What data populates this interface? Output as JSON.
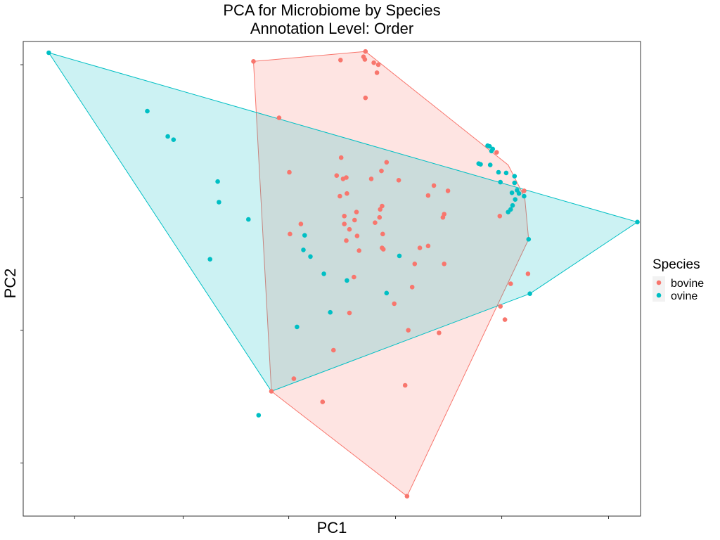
{
  "chart_data": {
    "type": "scatter",
    "title": "PCA for Microbiome by Species",
    "subtitle": "Annotation Level: Order",
    "xlabel": "PC1",
    "ylabel": "PC2",
    "tick_labels_visible": false,
    "grid": false,
    "xlim": [
      -1.1,
      8.55
    ],
    "ylim": [
      -0.3,
      6.85
    ],
    "x_ticks": [
      -0.3,
      1.4,
      3.05,
      4.72,
      6.38,
      8.05
    ],
    "y_ticks": [
      0.5,
      2.5,
      4.5,
      6.5
    ],
    "legend": {
      "title": "Species",
      "position": "right"
    },
    "hull_fill_opacity": 0.2,
    "series": [
      {
        "name": "bovine",
        "color": "#F8766D",
        "hull": [
          [
            2.5,
            6.55
          ],
          [
            4.25,
            6.7
          ],
          [
            6.48,
            4.99
          ],
          [
            6.74,
            4.5
          ],
          [
            6.8,
            3.87
          ],
          [
            4.9,
            0.0
          ],
          [
            2.78,
            1.58
          ]
        ],
        "points": [
          [
            2.5,
            6.55
          ],
          [
            3.86,
            6.57
          ],
          [
            4.25,
            6.7
          ],
          [
            4.22,
            6.62
          ],
          [
            4.24,
            6.58
          ],
          [
            4.38,
            6.53
          ],
          [
            4.45,
            6.5
          ],
          [
            4.43,
            6.38
          ],
          [
            4.25,
            6.0
          ],
          [
            2.9,
            5.7
          ],
          [
            6.3,
            5.18
          ],
          [
            3.87,
            5.1
          ],
          [
            3.06,
            4.88
          ],
          [
            3.8,
            4.83
          ],
          [
            3.9,
            4.78
          ],
          [
            4.34,
            4.78
          ],
          [
            3.95,
            4.8
          ],
          [
            4.77,
            4.76
          ],
          [
            5.32,
            4.68
          ],
          [
            5.54,
            4.6
          ],
          [
            6.73,
            4.6
          ],
          [
            3.96,
            4.56
          ],
          [
            3.85,
            4.52
          ],
          [
            5.23,
            4.53
          ],
          [
            4.5,
            4.9
          ],
          [
            4.58,
            5.03
          ],
          [
            4.11,
            4.28
          ],
          [
            4.48,
            4.32
          ],
          [
            4.51,
            4.37
          ],
          [
            3.92,
            4.22
          ],
          [
            4.08,
            4.16
          ],
          [
            3.24,
            4.1
          ],
          [
            3.92,
            4.1
          ],
          [
            4.0,
            4.02
          ],
          [
            4.4,
            4.12
          ],
          [
            4.47,
            4.2
          ],
          [
            5.46,
            4.2
          ],
          [
            5.48,
            4.25
          ],
          [
            6.35,
            4.22
          ],
          [
            3.07,
            3.95
          ],
          [
            4.12,
            3.92
          ],
          [
            4.52,
            3.95
          ],
          [
            3.95,
            3.85
          ],
          [
            4.15,
            3.7
          ],
          [
            4.51,
            3.74
          ],
          [
            5.23,
            3.77
          ],
          [
            5.1,
            3.74
          ],
          [
            4.98,
            3.15
          ],
          [
            4.53,
            3.72
          ],
          [
            6.52,
            3.2
          ],
          [
            5.02,
            3.5
          ],
          [
            5.48,
            3.5
          ],
          [
            4.07,
            3.3
          ],
          [
            4.0,
            2.76
          ],
          [
            6.79,
            3.35
          ],
          [
            4.7,
            2.9
          ],
          [
            6.36,
            2.86
          ],
          [
            6.43,
            2.66
          ],
          [
            5.4,
            2.46
          ],
          [
            4.92,
            2.5
          ],
          [
            3.75,
            2.2
          ],
          [
            3.13,
            1.77
          ],
          [
            3.58,
            1.42
          ],
          [
            4.87,
            1.67
          ],
          [
            2.78,
            1.58
          ],
          [
            4.9,
            0.0
          ]
        ]
      },
      {
        "name": "ovine",
        "color": "#00BFC4",
        "hull": [
          [
            -0.7,
            6.68
          ],
          [
            8.5,
            4.13
          ],
          [
            6.82,
            3.05
          ],
          [
            2.78,
            1.58
          ]
        ],
        "points": [
          [
            -0.7,
            6.68
          ],
          [
            0.84,
            5.8
          ],
          [
            1.16,
            5.42
          ],
          [
            1.25,
            5.37
          ],
          [
            1.94,
            4.74
          ],
          [
            1.96,
            4.43
          ],
          [
            2.42,
            4.17
          ],
          [
            1.82,
            3.57
          ],
          [
            2.58,
            1.22
          ],
          [
            3.3,
            3.93
          ],
          [
            3.28,
            3.71
          ],
          [
            3.39,
            3.61
          ],
          [
            3.6,
            3.35
          ],
          [
            3.96,
            3.25
          ],
          [
            4.78,
            3.62
          ],
          [
            4.58,
            3.06
          ],
          [
            3.18,
            2.55
          ],
          [
            3.7,
            2.77
          ],
          [
            6.16,
            5.28
          ],
          [
            6.19,
            5.27
          ],
          [
            6.24,
            5.23
          ],
          [
            6.22,
            5.2
          ],
          [
            6.02,
            5.01
          ],
          [
            6.05,
            5.0
          ],
          [
            6.2,
            4.99
          ],
          [
            6.33,
            4.88
          ],
          [
            6.45,
            4.87
          ],
          [
            6.58,
            4.82
          ],
          [
            6.58,
            4.72
          ],
          [
            6.36,
            4.73
          ],
          [
            6.54,
            4.57
          ],
          [
            6.62,
            4.61
          ],
          [
            6.65,
            4.56
          ],
          [
            6.73,
            4.52
          ],
          [
            6.59,
            4.47
          ],
          [
            6.55,
            4.38
          ],
          [
            6.52,
            4.32
          ],
          [
            6.48,
            4.28
          ],
          [
            8.5,
            4.13
          ],
          [
            6.8,
            3.87
          ],
          [
            6.82,
            3.05
          ]
        ]
      }
    ]
  }
}
